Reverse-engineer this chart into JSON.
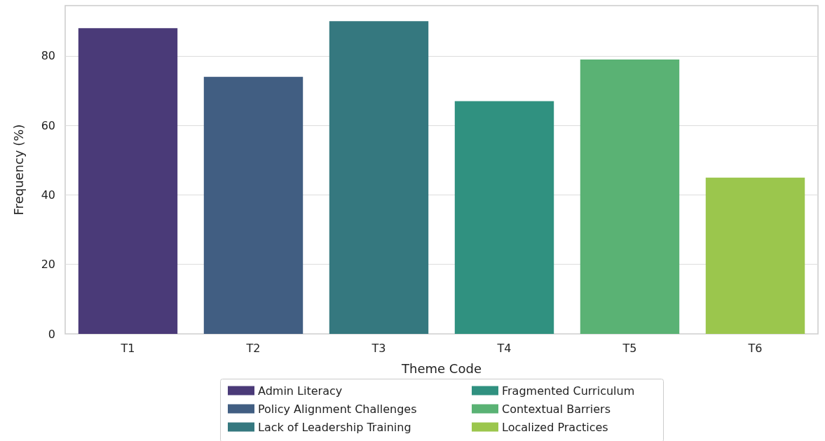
{
  "chart_data": {
    "type": "bar",
    "xlabel": "Theme Code",
    "ylabel": "Frequency (%)",
    "categories": [
      "T1",
      "T2",
      "T3",
      "T4",
      "T5",
      "T6"
    ],
    "series": [
      {
        "name": "Admin Literacy",
        "color": "#4a3a78",
        "values": [
          88,
          null,
          null,
          null,
          null,
          null
        ]
      },
      {
        "name": "Policy Alignment Challenges",
        "color": "#415e82",
        "values": [
          null,
          74,
          null,
          null,
          null,
          null
        ]
      },
      {
        "name": "Lack of Leadership Training",
        "color": "#35787f",
        "values": [
          null,
          null,
          90,
          null,
          null,
          null
        ]
      },
      {
        "name": "Fragmented Curriculum",
        "color": "#309180",
        "values": [
          null,
          null,
          null,
          67,
          null,
          null
        ]
      },
      {
        "name": "Contextual Barriers",
        "color": "#5ab274",
        "values": [
          null,
          null,
          null,
          null,
          79,
          null
        ]
      },
      {
        "name": "Localized Practices",
        "color": "#9bc64d",
        "values": [
          null,
          null,
          null,
          null,
          null,
          45
        ]
      }
    ],
    "ylim": [
      0,
      94.5
    ],
    "yticks": [
      0,
      20,
      40,
      60,
      80
    ],
    "grid": "y",
    "legend": "bottom"
  }
}
